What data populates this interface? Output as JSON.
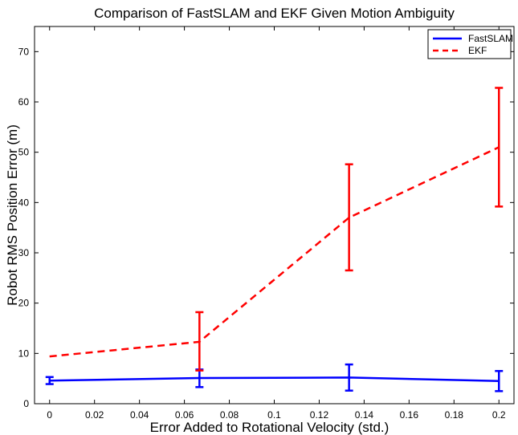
{
  "chart_data": {
    "type": "line",
    "title": "Comparison of FastSLAM and EKF Given Motion Ambiguity",
    "xlabel": "Error Added to Rotational Velocity (std.)",
    "ylabel": "Robot RMS Position Error (m)",
    "xlim": [
      -0.0067,
      0.2067
    ],
    "ylim": [
      0,
      75
    ],
    "x_ticks": [
      0,
      0.02,
      0.04,
      0.06,
      0.08,
      0.1,
      0.12,
      0.14,
      0.16,
      0.18,
      0.2
    ],
    "x_tick_labels": [
      "0",
      "0.02",
      "0.04",
      "0.06",
      "0.08",
      "0.1",
      "0.12",
      "0.14",
      "0.16",
      "0.18",
      "0.2"
    ],
    "y_ticks": [
      0,
      10,
      20,
      30,
      40,
      50,
      60,
      70
    ],
    "y_tick_labels": [
      "0",
      "10",
      "20",
      "30",
      "40",
      "50",
      "60",
      "70"
    ],
    "grid": false,
    "legend_position": "top-right",
    "x": [
      0,
      0.0667,
      0.1333,
      0.2
    ],
    "series": [
      {
        "name": "FastSLAM",
        "color": "#0000ff",
        "line_style": "solid",
        "values": [
          4.6,
          5.1,
          5.2,
          4.5
        ],
        "err_low": [
          3.9,
          3.3,
          2.6,
          2.5
        ],
        "err_high": [
          5.3,
          6.8,
          7.8,
          6.5
        ]
      },
      {
        "name": "EKF",
        "color": "#ff0000",
        "line_style": "dashed",
        "values": [
          9.4,
          12.3,
          37.0,
          51.0
        ],
        "err_low": [
          null,
          6.6,
          26.5,
          39.2
        ],
        "err_high": [
          null,
          18.2,
          47.6,
          62.8
        ]
      }
    ]
  }
}
